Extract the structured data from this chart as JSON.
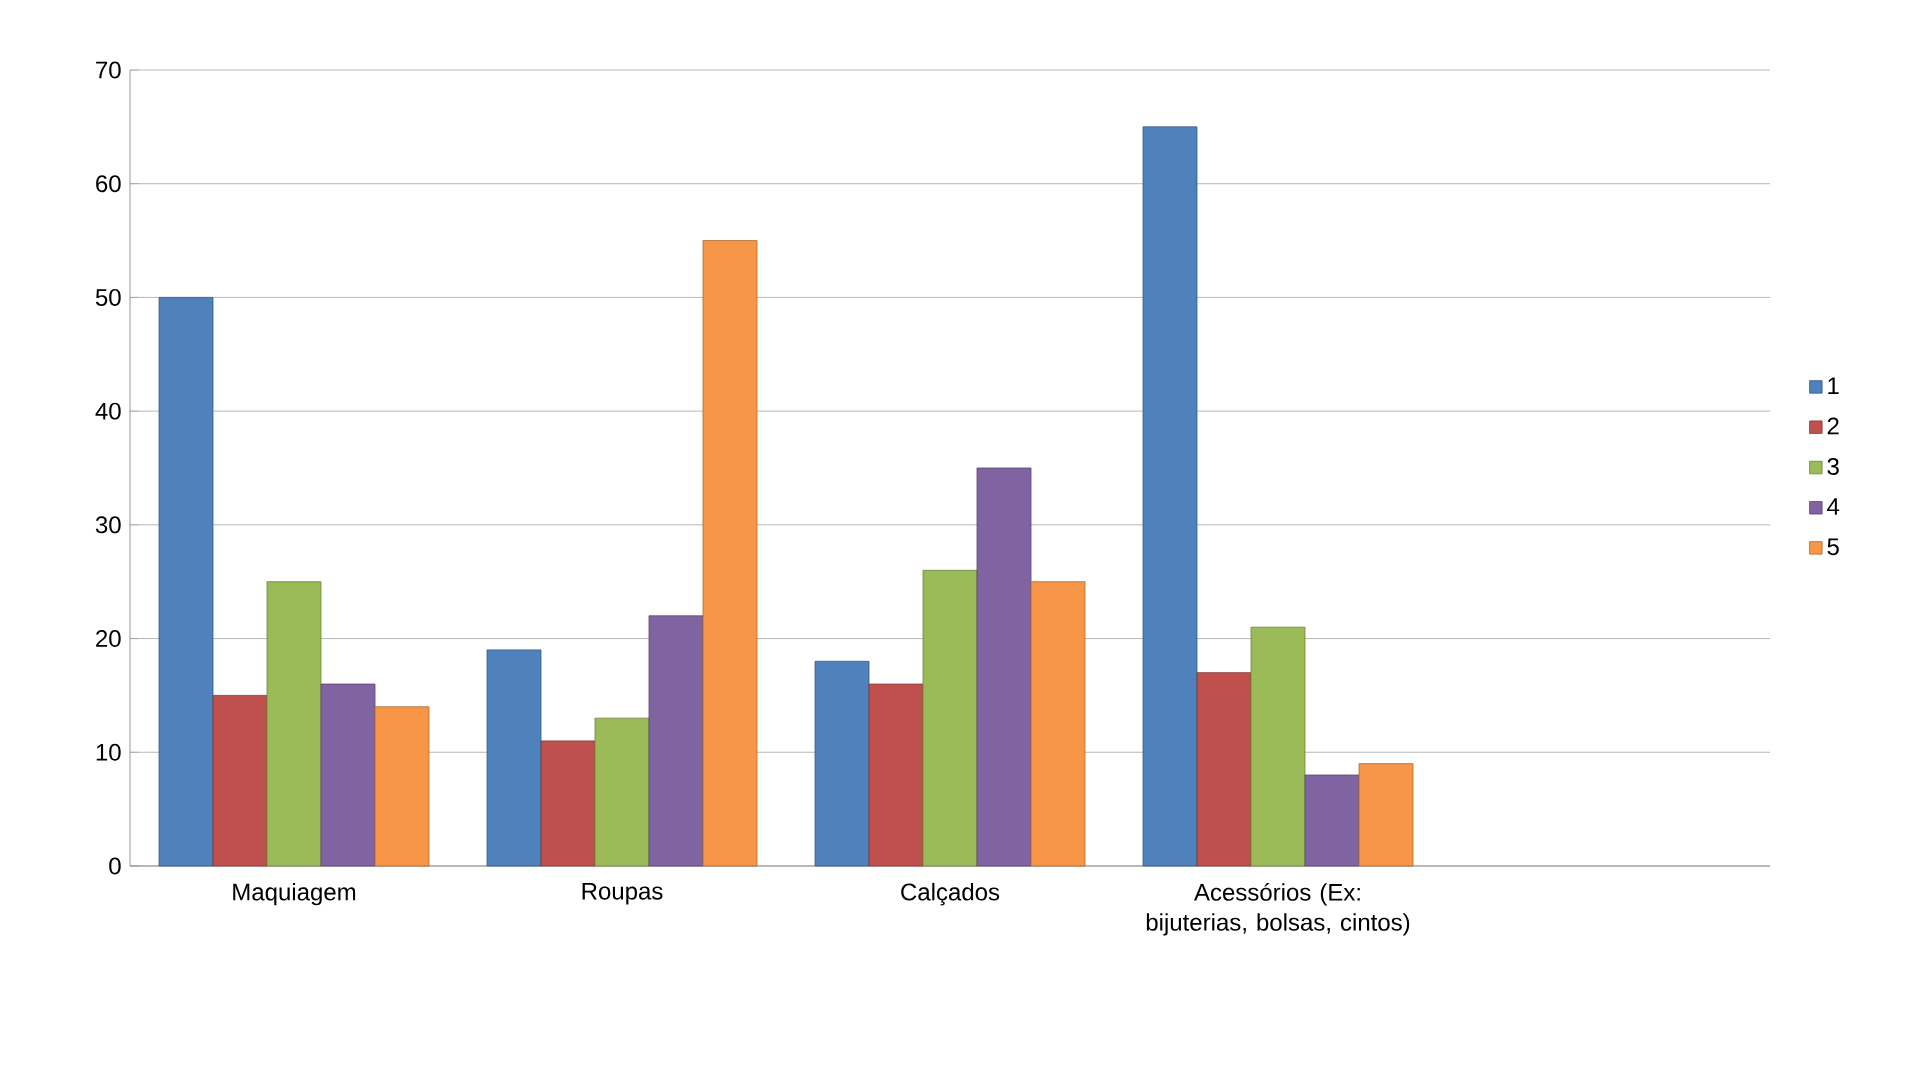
{
  "chart_data": {
    "type": "bar",
    "categories": [
      "Maquiagem",
      "Roupas",
      "Calçados",
      "Acessórios (Ex: bijuterias, bolsas, cintos)",
      null
    ],
    "series": [
      {
        "name": "1",
        "color": "#4f81bd",
        "values": [
          50,
          19,
          18,
          65,
          null
        ]
      },
      {
        "name": "2",
        "color": "#c0504d",
        "values": [
          15,
          11,
          16,
          17,
          null
        ]
      },
      {
        "name": "3",
        "color": "#9bbb59",
        "values": [
          25,
          13,
          26,
          21,
          null
        ]
      },
      {
        "name": "4",
        "color": "#8064a2",
        "values": [
          16,
          22,
          35,
          8,
          null
        ]
      },
      {
        "name": "5",
        "color": "#f79646",
        "values": [
          14,
          55,
          25,
          9,
          null
        ]
      }
    ],
    "ylim": [
      0,
      70
    ],
    "yticks": [
      0,
      10,
      20,
      30,
      40,
      50,
      60,
      70
    ],
    "grid": "y",
    "legend": "right"
  }
}
